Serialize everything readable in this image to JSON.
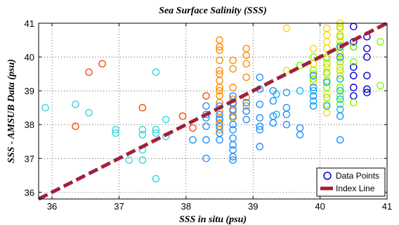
{
  "chart_data": {
    "type": "scatter",
    "title": "Sea Surface Salinity (SSS)",
    "xlabel": "SSS in situ (psu)",
    "ylabel": "SSS - AMSUB Data (psu)",
    "xlim": [
      35.8,
      41
    ],
    "ylim": [
      35.8,
      41
    ],
    "xticks": [
      "36",
      "37",
      "38",
      "39",
      "40",
      "41"
    ],
    "yticks": [
      "36",
      "37",
      "38",
      "39",
      "40",
      "41"
    ],
    "grid": true,
    "legend_position": "bottom-right",
    "legend": [
      "Data Points",
      "Index Line"
    ],
    "colormap_note": "points colored by in situ salinity",
    "series": [
      {
        "name": "Data Points",
        "marker": "circle-open",
        "points": [
          {
            "x": 35.9,
            "y": 38.5,
            "color": "#33d4e0"
          },
          {
            "x": 36.35,
            "y": 38.6,
            "color": "#33d4e0"
          },
          {
            "x": 36.35,
            "y": 37.95,
            "color": "#ff4500"
          },
          {
            "x": 36.55,
            "y": 39.55,
            "color": "#ff4500"
          },
          {
            "x": 36.55,
            "y": 38.35,
            "color": "#33d4e0"
          },
          {
            "x": 36.75,
            "y": 39.8,
            "color": "#ff4500"
          },
          {
            "x": 36.95,
            "y": 37.85,
            "color": "#33d4e0"
          },
          {
            "x": 36.95,
            "y": 37.75,
            "color": "#33d4e0"
          },
          {
            "x": 37.15,
            "y": 36.95,
            "color": "#33d4e0"
          },
          {
            "x": 37.35,
            "y": 38.5,
            "color": "#ff4500"
          },
          {
            "x": 37.35,
            "y": 37.85,
            "color": "#33d4e0"
          },
          {
            "x": 37.35,
            "y": 37.7,
            "color": "#33d4e0"
          },
          {
            "x": 37.35,
            "y": 37.25,
            "color": "#33d4e0"
          },
          {
            "x": 37.35,
            "y": 36.95,
            "color": "#33d4e0"
          },
          {
            "x": 37.55,
            "y": 39.55,
            "color": "#33d4e0"
          },
          {
            "x": 37.55,
            "y": 37.85,
            "color": "#33d4e0"
          },
          {
            "x": 37.55,
            "y": 37.75,
            "color": "#33d4e0"
          },
          {
            "x": 37.55,
            "y": 36.4,
            "color": "#33d4e0"
          },
          {
            "x": 37.7,
            "y": 38.15,
            "color": "#33d4e0"
          },
          {
            "x": 37.7,
            "y": 37.65,
            "color": "#33d4e0"
          },
          {
            "x": 37.95,
            "y": 38.25,
            "color": "#ff4500"
          },
          {
            "x": 38.1,
            "y": 37.9,
            "color": "#ff4500"
          },
          {
            "x": 38.1,
            "y": 37.55,
            "color": "#1e90ff"
          },
          {
            "x": 38.3,
            "y": 38.85,
            "color": "#ff4500"
          },
          {
            "x": 38.3,
            "y": 38.55,
            "color": "#1e90ff"
          },
          {
            "x": 38.3,
            "y": 38.3,
            "color": "#1e90ff"
          },
          {
            "x": 38.3,
            "y": 38.2,
            "color": "#1e90ff"
          },
          {
            "x": 38.3,
            "y": 37.95,
            "color": "#1e90ff"
          },
          {
            "x": 38.3,
            "y": 37.55,
            "color": "#1e90ff"
          },
          {
            "x": 38.3,
            "y": 37.0,
            "color": "#1e90ff"
          },
          {
            "x": 38.5,
            "y": 40.5,
            "color": "#ff8c00"
          },
          {
            "x": 38.5,
            "y": 40.3,
            "color": "#ff8c00"
          },
          {
            "x": 38.5,
            "y": 40.2,
            "color": "#ff8c00"
          },
          {
            "x": 38.5,
            "y": 39.9,
            "color": "#ff8c00"
          },
          {
            "x": 38.5,
            "y": 39.6,
            "color": "#ff8c00"
          },
          {
            "x": 38.5,
            "y": 39.5,
            "color": "#ff8c00"
          },
          {
            "x": 38.5,
            "y": 39.3,
            "color": "#ff8c00"
          },
          {
            "x": 38.5,
            "y": 39.1,
            "color": "#ff8c00"
          },
          {
            "x": 38.5,
            "y": 39.0,
            "color": "#ff8c00"
          },
          {
            "x": 38.5,
            "y": 38.85,
            "color": "#ff8c00"
          },
          {
            "x": 38.5,
            "y": 38.65,
            "color": "#ff8c00"
          },
          {
            "x": 38.5,
            "y": 38.4,
            "color": "#ff8c00"
          },
          {
            "x": 38.5,
            "y": 38.2,
            "color": "#ff8c00"
          },
          {
            "x": 38.5,
            "y": 38.05,
            "color": "#ff8c00"
          },
          {
            "x": 38.5,
            "y": 37.85,
            "color": "#ff8c00"
          },
          {
            "x": 38.5,
            "y": 38.55,
            "color": "#1e90ff"
          },
          {
            "x": 38.5,
            "y": 38.3,
            "color": "#1e90ff"
          },
          {
            "x": 38.5,
            "y": 38.15,
            "color": "#1e90ff"
          },
          {
            "x": 38.5,
            "y": 37.95,
            "color": "#1e90ff"
          },
          {
            "x": 38.5,
            "y": 37.75,
            "color": "#1e90ff"
          },
          {
            "x": 38.5,
            "y": 37.55,
            "color": "#1e90ff"
          },
          {
            "x": 38.7,
            "y": 39.9,
            "color": "#ff8c00"
          },
          {
            "x": 38.7,
            "y": 39.65,
            "color": "#ff8c00"
          },
          {
            "x": 38.7,
            "y": 39.1,
            "color": "#ff8c00"
          },
          {
            "x": 38.7,
            "y": 38.75,
            "color": "#ff8c00"
          },
          {
            "x": 38.7,
            "y": 38.6,
            "color": "#ff8c00"
          },
          {
            "x": 38.7,
            "y": 38.4,
            "color": "#ff8c00"
          },
          {
            "x": 38.7,
            "y": 38.2,
            "color": "#ff8c00"
          },
          {
            "x": 38.7,
            "y": 38.85,
            "color": "#1e90ff"
          },
          {
            "x": 38.7,
            "y": 38.65,
            "color": "#1e90ff"
          },
          {
            "x": 38.7,
            "y": 38.45,
            "color": "#1e90ff"
          },
          {
            "x": 38.7,
            "y": 38.25,
            "color": "#1e90ff"
          },
          {
            "x": 38.7,
            "y": 38.0,
            "color": "#1e90ff"
          },
          {
            "x": 38.7,
            "y": 37.85,
            "color": "#1e90ff"
          },
          {
            "x": 38.7,
            "y": 37.6,
            "color": "#1e90ff"
          },
          {
            "x": 38.7,
            "y": 37.4,
            "color": "#1e90ff"
          },
          {
            "x": 38.7,
            "y": 37.25,
            "color": "#1e90ff"
          },
          {
            "x": 38.7,
            "y": 37.05,
            "color": "#1e90ff"
          },
          {
            "x": 38.7,
            "y": 36.95,
            "color": "#1e90ff"
          },
          {
            "x": 38.9,
            "y": 40.25,
            "color": "#ff8c00"
          },
          {
            "x": 38.9,
            "y": 40.05,
            "color": "#ff8c00"
          },
          {
            "x": 38.9,
            "y": 39.8,
            "color": "#ff8c00"
          },
          {
            "x": 38.9,
            "y": 39.4,
            "color": "#ff8c00"
          },
          {
            "x": 38.9,
            "y": 38.8,
            "color": "#ff8c00"
          },
          {
            "x": 38.9,
            "y": 38.55,
            "color": "#ff8c00"
          },
          {
            "x": 38.9,
            "y": 38.4,
            "color": "#ff8c00"
          },
          {
            "x": 38.9,
            "y": 38.65,
            "color": "#1e90ff"
          },
          {
            "x": 38.9,
            "y": 38.4,
            "color": "#1e90ff"
          },
          {
            "x": 38.9,
            "y": 38.15,
            "color": "#1e90ff"
          },
          {
            "x": 39.1,
            "y": 39.4,
            "color": "#1e90ff"
          },
          {
            "x": 39.1,
            "y": 39.05,
            "color": "#1e90ff"
          },
          {
            "x": 39.1,
            "y": 38.6,
            "color": "#1e90ff"
          },
          {
            "x": 39.1,
            "y": 38.2,
            "color": "#1e90ff"
          },
          {
            "x": 39.1,
            "y": 37.95,
            "color": "#1e90ff"
          },
          {
            "x": 39.1,
            "y": 37.85,
            "color": "#1e90ff"
          },
          {
            "x": 39.1,
            "y": 37.35,
            "color": "#1e90ff"
          },
          {
            "x": 39.3,
            "y": 39.0,
            "color": "#1e90ff"
          },
          {
            "x": 39.3,
            "y": 38.7,
            "color": "#1e90ff"
          },
          {
            "x": 39.3,
            "y": 38.25,
            "color": "#1e90ff"
          },
          {
            "x": 39.3,
            "y": 38.05,
            "color": "#1e90ff"
          },
          {
            "x": 39.35,
            "y": 38.9,
            "color": "#00bfff"
          },
          {
            "x": 39.35,
            "y": 38.3,
            "color": "#00bfff"
          },
          {
            "x": 39.5,
            "y": 40.85,
            "color": "#ffd700"
          },
          {
            "x": 39.5,
            "y": 39.6,
            "color": "#ffd700"
          },
          {
            "x": 39.5,
            "y": 38.95,
            "color": "#1e90ff"
          },
          {
            "x": 39.5,
            "y": 38.5,
            "color": "#1e90ff"
          },
          {
            "x": 39.5,
            "y": 38.3,
            "color": "#1e90ff"
          },
          {
            "x": 39.5,
            "y": 38.0,
            "color": "#1e90ff"
          },
          {
            "x": 39.7,
            "y": 39.75,
            "color": "#7cfc00"
          },
          {
            "x": 39.7,
            "y": 39.0,
            "color": "#00bfff"
          },
          {
            "x": 39.7,
            "y": 37.9,
            "color": "#1e90ff"
          },
          {
            "x": 39.7,
            "y": 37.7,
            "color": "#1e90ff"
          },
          {
            "x": 39.9,
            "y": 40.25,
            "color": "#ffd700"
          },
          {
            "x": 39.9,
            "y": 39.8,
            "color": "#ffd700"
          },
          {
            "x": 39.9,
            "y": 39.5,
            "color": "#ffd700"
          },
          {
            "x": 39.9,
            "y": 39.25,
            "color": "#ffd700"
          },
          {
            "x": 39.9,
            "y": 40.0,
            "color": "#7cfc00"
          },
          {
            "x": 39.9,
            "y": 39.6,
            "color": "#7cfc00"
          },
          {
            "x": 39.9,
            "y": 39.35,
            "color": "#7cfc00"
          },
          {
            "x": 39.9,
            "y": 39.0,
            "color": "#00bfff"
          },
          {
            "x": 39.9,
            "y": 38.7,
            "color": "#00bfff"
          },
          {
            "x": 39.9,
            "y": 39.45,
            "color": "#1e90ff"
          },
          {
            "x": 39.9,
            "y": 39.1,
            "color": "#1e90ff"
          },
          {
            "x": 39.9,
            "y": 38.85,
            "color": "#1e90ff"
          },
          {
            "x": 39.9,
            "y": 38.55,
            "color": "#1e90ff"
          },
          {
            "x": 40.1,
            "y": 40.85,
            "color": "#ffd700"
          },
          {
            "x": 40.1,
            "y": 40.65,
            "color": "#ffd700"
          },
          {
            "x": 40.1,
            "y": 40.45,
            "color": "#ffd700"
          },
          {
            "x": 40.1,
            "y": 40.25,
            "color": "#ffd700"
          },
          {
            "x": 40.1,
            "y": 39.95,
            "color": "#ffd700"
          },
          {
            "x": 40.1,
            "y": 39.7,
            "color": "#ffd700"
          },
          {
            "x": 40.1,
            "y": 39.5,
            "color": "#ffd700"
          },
          {
            "x": 40.1,
            "y": 39.25,
            "color": "#ffd700"
          },
          {
            "x": 40.1,
            "y": 38.9,
            "color": "#ffd700"
          },
          {
            "x": 40.1,
            "y": 38.6,
            "color": "#ffd700"
          },
          {
            "x": 40.1,
            "y": 38.35,
            "color": "#ffd700"
          },
          {
            "x": 40.1,
            "y": 40.0,
            "color": "#7cfc00"
          },
          {
            "x": 40.1,
            "y": 39.8,
            "color": "#7cfc00"
          },
          {
            "x": 40.1,
            "y": 39.55,
            "color": "#7cfc00"
          },
          {
            "x": 40.1,
            "y": 39.3,
            "color": "#7cfc00"
          },
          {
            "x": 40.1,
            "y": 39.1,
            "color": "#7cfc00"
          },
          {
            "x": 40.1,
            "y": 38.8,
            "color": "#7cfc00"
          },
          {
            "x": 40.1,
            "y": 38.55,
            "color": "#00bfff"
          },
          {
            "x": 40.1,
            "y": 39.25,
            "color": "#00bfff"
          },
          {
            "x": 40.3,
            "y": 41.0,
            "color": "#ffd700"
          },
          {
            "x": 40.3,
            "y": 40.85,
            "color": "#ffd700"
          },
          {
            "x": 40.3,
            "y": 40.65,
            "color": "#ffd700"
          },
          {
            "x": 40.3,
            "y": 40.45,
            "color": "#ffd700"
          },
          {
            "x": 40.3,
            "y": 40.2,
            "color": "#ffd700"
          },
          {
            "x": 40.3,
            "y": 39.95,
            "color": "#ffd700"
          },
          {
            "x": 40.3,
            "y": 39.7,
            "color": "#ffd700"
          },
          {
            "x": 40.3,
            "y": 39.45,
            "color": "#ffd700"
          },
          {
            "x": 40.3,
            "y": 40.9,
            "color": "#7cfc00"
          },
          {
            "x": 40.3,
            "y": 40.6,
            "color": "#7cfc00"
          },
          {
            "x": 40.3,
            "y": 40.35,
            "color": "#7cfc00"
          },
          {
            "x": 40.3,
            "y": 40.1,
            "color": "#7cfc00"
          },
          {
            "x": 40.3,
            "y": 39.85,
            "color": "#7cfc00"
          },
          {
            "x": 40.3,
            "y": 39.6,
            "color": "#7cfc00"
          },
          {
            "x": 40.3,
            "y": 39.35,
            "color": "#7cfc00"
          },
          {
            "x": 40.3,
            "y": 39.1,
            "color": "#7cfc00"
          },
          {
            "x": 40.3,
            "y": 38.85,
            "color": "#7cfc00"
          },
          {
            "x": 40.3,
            "y": 38.6,
            "color": "#7cfc00"
          },
          {
            "x": 40.3,
            "y": 40.3,
            "color": "#1e90ff"
          },
          {
            "x": 40.3,
            "y": 40.0,
            "color": "#1e90ff"
          },
          {
            "x": 40.3,
            "y": 39.35,
            "color": "#00bfff"
          },
          {
            "x": 40.3,
            "y": 39.0,
            "color": "#00bfff"
          },
          {
            "x": 40.3,
            "y": 38.75,
            "color": "#00bfff"
          },
          {
            "x": 40.3,
            "y": 38.45,
            "color": "#00bfff"
          },
          {
            "x": 40.3,
            "y": 38.25,
            "color": "#1e90ff"
          },
          {
            "x": 40.3,
            "y": 37.55,
            "color": "#1e90ff"
          },
          {
            "x": 40.5,
            "y": 40.9,
            "color": "#0000cd"
          },
          {
            "x": 40.5,
            "y": 40.45,
            "color": "#0000cd"
          },
          {
            "x": 40.5,
            "y": 40.3,
            "color": "#0000cd"
          },
          {
            "x": 40.5,
            "y": 39.7,
            "color": "#0000cd"
          },
          {
            "x": 40.5,
            "y": 39.45,
            "color": "#0000cd"
          },
          {
            "x": 40.5,
            "y": 39.1,
            "color": "#0000cd"
          },
          {
            "x": 40.5,
            "y": 38.85,
            "color": "#0000cd"
          },
          {
            "x": 40.5,
            "y": 40.3,
            "color": "#7cfc00"
          },
          {
            "x": 40.5,
            "y": 39.85,
            "color": "#7cfc00"
          },
          {
            "x": 40.5,
            "y": 38.65,
            "color": "#7cfc00"
          },
          {
            "x": 40.7,
            "y": 40.6,
            "color": "#0000cd"
          },
          {
            "x": 40.7,
            "y": 40.25,
            "color": "#0000cd"
          },
          {
            "x": 40.7,
            "y": 40.0,
            "color": "#0000cd"
          },
          {
            "x": 40.7,
            "y": 39.45,
            "color": "#0000cd"
          },
          {
            "x": 40.7,
            "y": 39.05,
            "color": "#0000cd"
          },
          {
            "x": 40.7,
            "y": 38.95,
            "color": "#0000cd"
          },
          {
            "x": 40.9,
            "y": 40.45,
            "color": "#7cfc00"
          },
          {
            "x": 40.9,
            "y": 39.15,
            "color": "#7cfc00"
          }
        ]
      },
      {
        "name": "Index Line",
        "type": "line",
        "color": "#a0203a",
        "style": "dashed",
        "x": [
          35.8,
          41
        ],
        "y": [
          35.8,
          41
        ]
      }
    ]
  }
}
